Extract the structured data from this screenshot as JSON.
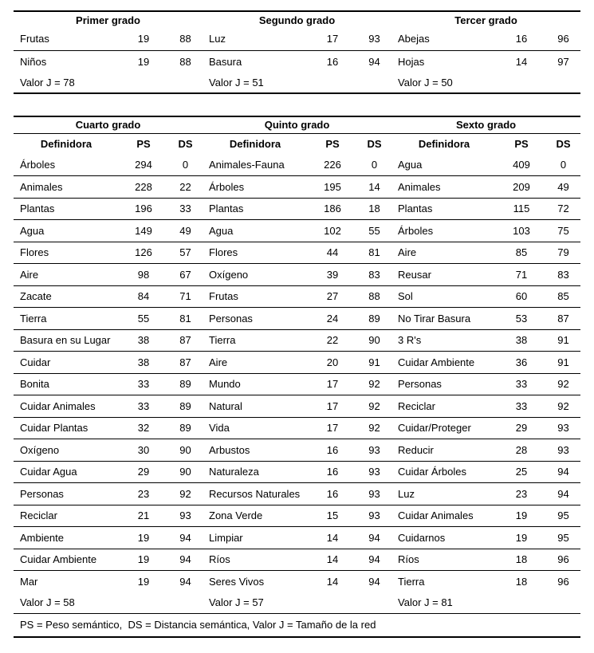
{
  "upper_table": {
    "groups": [
      {
        "title": "Primer grado",
        "rows": [
          [
            "Frutas",
            "19",
            "88"
          ],
          [
            "Niños",
            "19",
            "88"
          ]
        ],
        "valor_label": "Valor J = 78"
      },
      {
        "title": "Segundo grado",
        "rows": [
          [
            "Luz",
            "17",
            "93"
          ],
          [
            "Basura",
            "16",
            "94"
          ]
        ],
        "valor_label": "Valor J = 51"
      },
      {
        "title": "Tercer grado",
        "rows": [
          [
            "Abejas",
            "16",
            "96"
          ],
          [
            "Hojas",
            "14",
            "97"
          ]
        ],
        "valor_label": "Valor J = 50"
      }
    ]
  },
  "lower_table": {
    "column_headers": [
      "Definidora",
      "PS",
      "DS"
    ],
    "groups": [
      {
        "title": "Cuarto grado",
        "rows": [
          [
            "Árboles",
            "294",
            "0"
          ],
          [
            "Animales",
            "228",
            "22"
          ],
          [
            "Plantas",
            "196",
            "33"
          ],
          [
            "Agua",
            "149",
            "49"
          ],
          [
            "Flores",
            "126",
            "57"
          ],
          [
            "Aire",
            "98",
            "67"
          ],
          [
            "Zacate",
            "84",
            "71"
          ],
          [
            "Tierra",
            "55",
            "81"
          ],
          [
            "Basura en su Lugar",
            "38",
            "87"
          ],
          [
            "Cuidar",
            "38",
            "87"
          ],
          [
            "Bonita",
            "33",
            "89"
          ],
          [
            "Cuidar Animales",
            "33",
            "89"
          ],
          [
            "Cuidar Plantas",
            "32",
            "89"
          ],
          [
            "Oxígeno",
            "30",
            "90"
          ],
          [
            "Cuidar Agua",
            "29",
            "90"
          ],
          [
            "Personas",
            "23",
            "92"
          ],
          [
            "Reciclar",
            "21",
            "93"
          ],
          [
            "Ambiente",
            "19",
            "94"
          ],
          [
            "Cuidar Ambiente",
            "19",
            "94"
          ],
          [
            "Mar",
            "19",
            "94"
          ]
        ],
        "valor_label": "Valor J = 58"
      },
      {
        "title": "Quinto grado",
        "rows": [
          [
            "Animales-Fauna",
            "226",
            "0"
          ],
          [
            "Árboles",
            "195",
            "14"
          ],
          [
            "Plantas",
            "186",
            "18"
          ],
          [
            "Agua",
            "102",
            "55"
          ],
          [
            "Flores",
            "44",
            "81"
          ],
          [
            "Oxígeno",
            "39",
            "83"
          ],
          [
            "Frutas",
            "27",
            "88"
          ],
          [
            "Personas",
            "24",
            "89"
          ],
          [
            "Tierra",
            "22",
            "90"
          ],
          [
            "Aire",
            "20",
            "91"
          ],
          [
            "Mundo",
            "17",
            "92"
          ],
          [
            "Natural",
            "17",
            "92"
          ],
          [
            "Vida",
            "17",
            "92"
          ],
          [
            "Arbustos",
            "16",
            "93"
          ],
          [
            "Naturaleza",
            "16",
            "93"
          ],
          [
            "Recursos Naturales",
            "16",
            "93"
          ],
          [
            "Zona Verde",
            "15",
            "93"
          ],
          [
            "Limpiar",
            "14",
            "94"
          ],
          [
            "Ríos",
            "14",
            "94"
          ],
          [
            "Seres Vivos",
            "14",
            "94"
          ]
        ],
        "valor_label": "Valor J = 57"
      },
      {
        "title": "Sexto grado",
        "rows": [
          [
            "Agua",
            "409",
            "0"
          ],
          [
            "Animales",
            "209",
            "49"
          ],
          [
            "Plantas",
            "115",
            "72"
          ],
          [
            "Árboles",
            "103",
            "75"
          ],
          [
            "Aire",
            "85",
            "79"
          ],
          [
            "Reusar",
            "71",
            "83"
          ],
          [
            "Sol",
            "60",
            "85"
          ],
          [
            "No Tirar Basura",
            "53",
            "87"
          ],
          [
            "3 R's",
            "38",
            "91"
          ],
          [
            "Cuidar Ambiente",
            "36",
            "91"
          ],
          [
            "Personas",
            "33",
            "92"
          ],
          [
            "Reciclar",
            "33",
            "92"
          ],
          [
            "Cuidar/Proteger",
            "29",
            "93"
          ],
          [
            "Reducir",
            "28",
            "93"
          ],
          [
            "Cuidar Árboles",
            "25",
            "94"
          ],
          [
            "Luz",
            "23",
            "94"
          ],
          [
            "Cuidar Animales",
            "19",
            "95"
          ],
          [
            "Cuidarnos",
            "19",
            "95"
          ],
          [
            "Ríos",
            "18",
            "96"
          ],
          [
            "Tierra",
            "18",
            "96"
          ]
        ],
        "valor_label": "Valor J = 81"
      }
    ]
  },
  "legend": "PS = Peso semántico,  DS = Distancia semántica, Valor J = Tamaño de la red"
}
